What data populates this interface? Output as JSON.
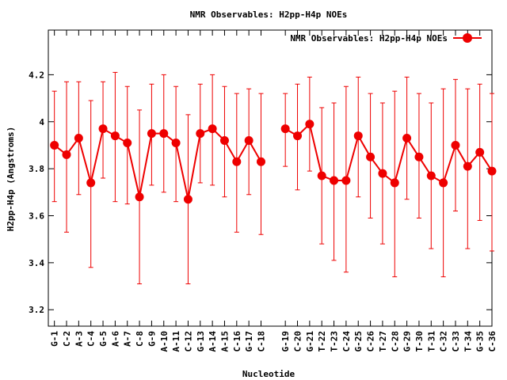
{
  "chart_data": {
    "type": "line",
    "title": "NMR Observables: H2pp-H4p NOEs",
    "xlabel": "Nucleotide",
    "ylabel": "H2pp-H4p (Angstroms)",
    "ylim": [
      3.13,
      4.39
    ],
    "yticks": [
      "3.2",
      "3.4",
      "3.6",
      "3.8",
      "4",
      "4.2"
    ],
    "ytick_values": [
      3.2,
      3.4,
      3.6,
      3.8,
      4.0,
      4.2
    ],
    "xlim": [
      0.5,
      37.0
    ],
    "grid": false,
    "legend_position": "top-right",
    "categories": [
      "G-1",
      "C-2",
      "A-3",
      "C-4",
      "G-5",
      "A-6",
      "A-7",
      "C-8",
      "G-9",
      "A-10",
      "A-11",
      "C-12",
      "G-13",
      "A-14",
      "A-15",
      "C-16",
      "G-17",
      "C-18",
      "G-19",
      "C-20",
      "G-21",
      "T-22",
      "T-23",
      "C-24",
      "G-25",
      "C-26",
      "T-27",
      "C-28",
      "G-29",
      "T-30",
      "T-31",
      "C-32",
      "C-33",
      "T-34",
      "G-35",
      "C-36"
    ],
    "x_positions": [
      1,
      2,
      3,
      4,
      5,
      6,
      7,
      8,
      9,
      10,
      11,
      12,
      13,
      14,
      15,
      16,
      17,
      18,
      20,
      21,
      22,
      23,
      24,
      25,
      26,
      27,
      28,
      29,
      30,
      31,
      32,
      33,
      34,
      35,
      36,
      37
    ],
    "segments": [
      [
        0,
        17
      ],
      [
        18,
        35
      ]
    ],
    "series": [
      {
        "name": "NMR Observables: H2pp-H4p NOEs",
        "color": "#ee0000",
        "values": [
          3.9,
          3.86,
          3.93,
          3.74,
          3.97,
          3.94,
          3.91,
          3.68,
          3.95,
          3.95,
          3.91,
          3.67,
          3.95,
          3.97,
          3.92,
          3.83,
          3.92,
          3.83,
          3.97,
          3.94,
          3.99,
          3.77,
          3.75,
          3.75,
          3.94,
          3.85,
          3.78,
          3.74,
          3.93,
          3.85,
          3.77,
          3.74,
          3.9,
          3.81,
          3.87,
          3.79
        ],
        "error_low": [
          3.66,
          3.53,
          3.69,
          3.38,
          3.76,
          3.66,
          3.65,
          3.31,
          3.73,
          3.7,
          3.66,
          3.31,
          3.74,
          3.73,
          3.68,
          3.53,
          3.69,
          3.52,
          3.81,
          3.71,
          3.79,
          3.48,
          3.41,
          3.36,
          3.68,
          3.59,
          3.48,
          3.34,
          3.67,
          3.59,
          3.46,
          3.34,
          3.62,
          3.46,
          3.58,
          3.45
        ],
        "error_high": [
          4.13,
          4.17,
          4.17,
          4.09,
          4.17,
          4.21,
          4.15,
          4.05,
          4.16,
          4.2,
          4.15,
          4.03,
          4.16,
          4.2,
          4.15,
          4.12,
          4.14,
          4.12,
          4.12,
          4.16,
          4.19,
          4.06,
          4.08,
          4.15,
          4.19,
          4.12,
          4.08,
          4.13,
          4.19,
          4.12,
          4.08,
          4.14,
          4.18,
          4.14,
          4.16,
          4.12
        ]
      }
    ]
  }
}
